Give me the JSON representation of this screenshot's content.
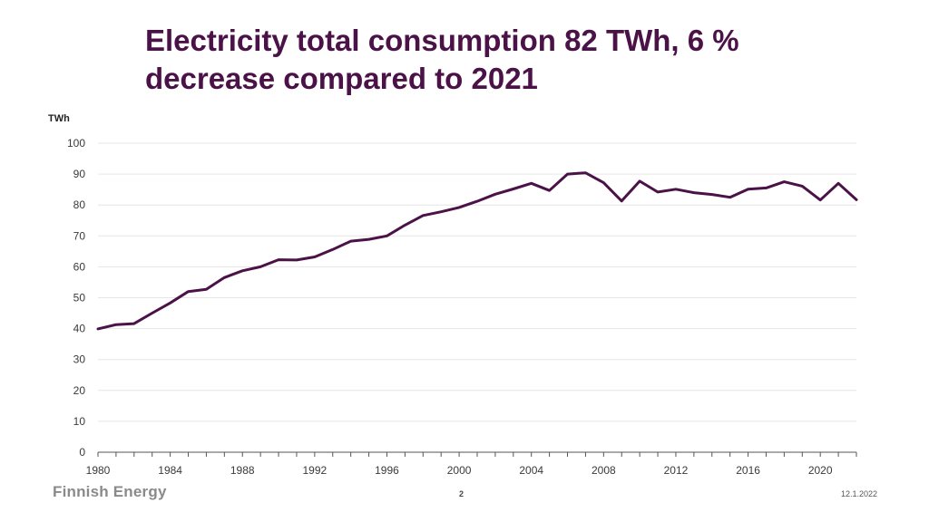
{
  "title": {
    "line1": "Electricity total consumption 82 TWh, 6 %",
    "line2": "decrease compared to 2021"
  },
  "footer": {
    "logo_text": "Finnish Energy",
    "page_number": "2",
    "date": "12.1.2022"
  },
  "colors": {
    "accent": "#4b1248",
    "grid": "#e6e6e6",
    "axis": "#555555"
  },
  "chart_data": {
    "type": "line",
    "title": "Electricity total consumption 82 TWh, 6 % decrease compared to 2021",
    "ylabel": "TWh",
    "xlabel": "",
    "ylim": [
      0,
      100
    ],
    "xlim": [
      1980,
      2022
    ],
    "yticks": [
      0,
      10,
      20,
      30,
      40,
      50,
      60,
      70,
      80,
      90,
      100
    ],
    "xticks": [
      1980,
      1984,
      1988,
      1992,
      1996,
      2000,
      2004,
      2008,
      2012,
      2016,
      2020
    ],
    "grid": true,
    "legend": "none",
    "series": [
      {
        "name": "Electricity consumption",
        "color": "#4b1248",
        "x": [
          1980,
          1981,
          1982,
          1983,
          1984,
          1985,
          1986,
          1987,
          1988,
          1989,
          1990,
          1991,
          1992,
          1993,
          1994,
          1995,
          1996,
          1997,
          1998,
          1999,
          2000,
          2001,
          2002,
          2003,
          2004,
          2005,
          2006,
          2007,
          2008,
          2009,
          2010,
          2011,
          2012,
          2013,
          2014,
          2015,
          2016,
          2017,
          2018,
          2019,
          2020,
          2021,
          2022
        ],
        "values": [
          39.9,
          41.3,
          41.6,
          45.0,
          48.3,
          52.0,
          52.7,
          56.5,
          58.7,
          60.0,
          62.3,
          62.2,
          63.2,
          65.6,
          68.3,
          68.9,
          70.0,
          73.5,
          76.6,
          77.8,
          79.2,
          81.2,
          83.5,
          85.2,
          87.0,
          84.7,
          90.0,
          90.4,
          87.2,
          81.3,
          87.7,
          84.2,
          85.1,
          84.0,
          83.4,
          82.5,
          85.1,
          85.5,
          87.5,
          86.1,
          81.6,
          87.0,
          81.7
        ]
      }
    ]
  }
}
